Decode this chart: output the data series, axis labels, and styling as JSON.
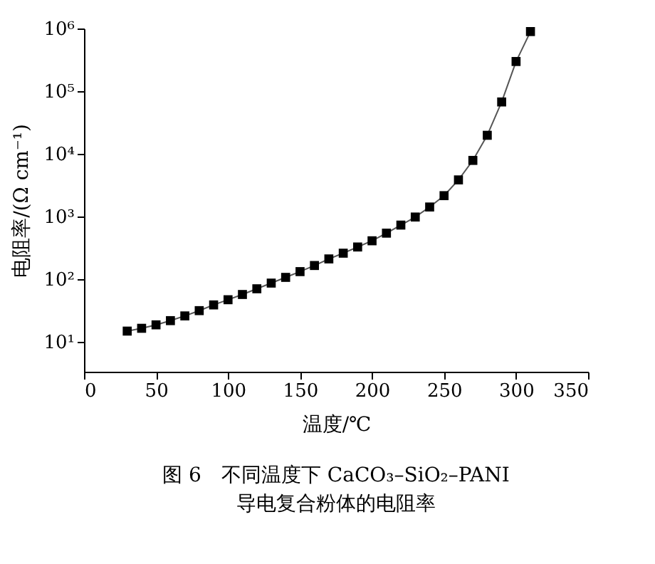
{
  "chart_data": {
    "type": "line",
    "title": "图 6　不同温度下 CaCO₃–SiO₂–PANI",
    "subtitle": "导电复合粉体的电阻率",
    "xlabel": "温度/℃",
    "ylabel": "电阻率/(Ω cm⁻¹)",
    "x": [
      30,
      40,
      50,
      60,
      70,
      80,
      90,
      100,
      110,
      120,
      130,
      140,
      150,
      160,
      170,
      180,
      190,
      200,
      210,
      220,
      230,
      240,
      250,
      260,
      270,
      280,
      290,
      300,
      310
    ],
    "series": [
      {
        "color": "#000000",
        "values": [
          14.7,
          16.3,
          18.5,
          21.6,
          25.7,
          31.2,
          38.5,
          46.6,
          56.5,
          69.7,
          85.9,
          106,
          131,
          164,
          209,
          258,
          324,
          407,
          539,
          725,
          975,
          1410,
          2140,
          3820,
          7820,
          19700,
          67100,
          297000,
          893000
        ]
      }
    ],
    "xlim": [
      0,
      350
    ],
    "xticks": [
      0,
      50,
      100,
      150,
      200,
      250,
      300,
      350
    ],
    "ylim": [
      3.3,
      1000000
    ],
    "log": "y",
    "yticks": [
      {
        "value": 10,
        "label": "10¹"
      },
      {
        "value": 100,
        "label": "10²"
      },
      {
        "value": 1000,
        "label": "10³"
      },
      {
        "value": 10000,
        "label": "10⁴"
      },
      {
        "value": 100000,
        "label": "10⁵"
      },
      {
        "value": 1000000,
        "label": "10⁶"
      }
    ],
    "marker": "square",
    "line_style": "solid",
    "grid": false
  }
}
